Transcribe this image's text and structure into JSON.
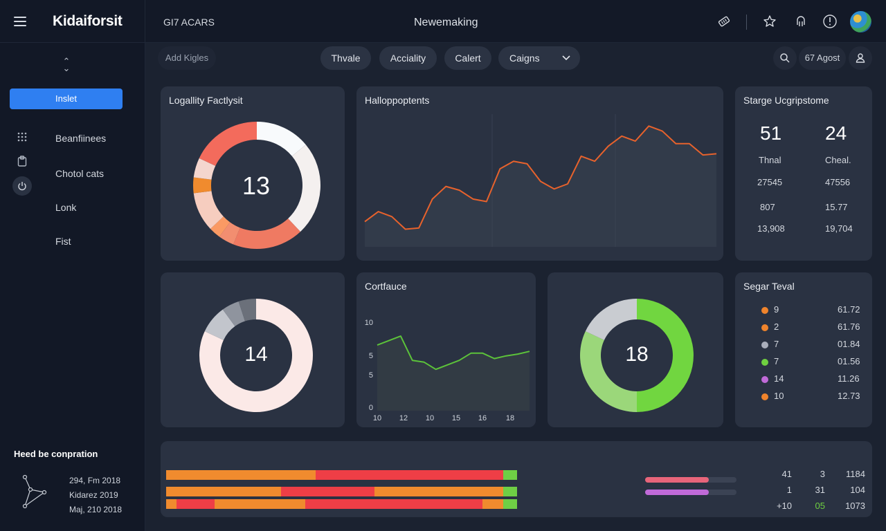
{
  "app": {
    "logo": "Kidaiforsit",
    "title_left": "GI7 ACARS",
    "title_center": "Newemaking"
  },
  "sidebar": {
    "primary_button": "Inslet",
    "items": [
      {
        "label": "Beanfiinees",
        "icon": "grid-icon"
      },
      {
        "label": "Chotol cats",
        "icon": "clipboard-icon"
      },
      {
        "label": "Lonk",
        "icon": "power-icon"
      },
      {
        "label": "Fist",
        "icon": ""
      }
    ],
    "footer": {
      "title": "Heed be conpration",
      "lines": [
        "294, Fm 2018",
        "Kidarez 2019",
        "Maj, 210 2018"
      ]
    }
  },
  "filters": {
    "search_label": "Add Kigles",
    "pills": [
      "Thvale",
      "Acciality",
      "Calert"
    ],
    "dropdown": "Caigns",
    "date": "67 Agost"
  },
  "cards": {
    "donut1": {
      "title": "Logallity Factlysit",
      "value": "13"
    },
    "line1": {
      "title": "Halloppoptents"
    },
    "stats": {
      "title": "Starge Ucgripstome",
      "col1": {
        "big": "51",
        "label": "Thnal",
        "rows": [
          "27545",
          "807",
          "13,908"
        ]
      },
      "col2": {
        "big": "24",
        "label": "Cheal.",
        "rows": [
          "47556",
          "15.77",
          "19,704"
        ]
      }
    },
    "donut2": {
      "value": "14"
    },
    "line2": {
      "title": "Cortfauce"
    },
    "donut3": {
      "value": "18"
    },
    "legend": {
      "title": "Segar Teval",
      "rows": [
        {
          "left": "9",
          "right": "61.72",
          "color": "#f0842c"
        },
        {
          "left": "2",
          "right": "61.76",
          "color": "#f0842c"
        },
        {
          "left": "7",
          "right": "01.84",
          "color": "#a9aebb"
        },
        {
          "left": "7",
          "right": "01.56",
          "color": "#6fd040"
        },
        {
          "left": "14",
          "right": "11.26",
          "color": "#c06ad8"
        },
        {
          "left": "10",
          "right": "12.73",
          "color": "#f0842c"
        }
      ]
    },
    "bottom": {
      "table": [
        [
          "41",
          "3",
          "1184"
        ],
        [
          "1",
          "31",
          "104"
        ],
        [
          "+10",
          "05",
          "1073"
        ]
      ]
    }
  },
  "chart_data": [
    {
      "type": "pie",
      "values": [
        14,
        24,
        18,
        4,
        3,
        10,
        4,
        5,
        18
      ],
      "colors": [
        "#f8fafc",
        "#f4f0ef",
        "#ef7a62",
        "#f28e70",
        "#fa9a64",
        "#f6cdbf",
        "#f08b2e",
        "#f4d6ce",
        "#f36b5c"
      ],
      "center_label": "13"
    },
    {
      "type": "line",
      "values": [
        20,
        28,
        24,
        14,
        15,
        38,
        48,
        45,
        38,
        36,
        62,
        68,
        66,
        52,
        46,
        50,
        72,
        68,
        80,
        88,
        84,
        96,
        92,
        82,
        82,
        73,
        74
      ],
      "ylim": [
        0,
        100
      ],
      "color": "#e8622c"
    },
    {
      "type": "pie",
      "values": [
        82,
        8,
        5,
        5
      ],
      "colors": [
        "#fbe9e7",
        "#c2c5cc",
        "#8f949e",
        "#6b707a"
      ],
      "center_label": "14"
    },
    {
      "type": "line",
      "x_ticks": [
        "10",
        "12",
        "10",
        "15",
        "16",
        "18"
      ],
      "y_ticks": [
        "10",
        "5",
        "5",
        "0"
      ],
      "values": [
        7.3,
        7.8,
        8.3,
        5.6,
        5.4,
        4.6,
        5.1,
        5.6,
        6.4,
        6.4,
        5.8,
        6.1,
        6.3,
        6.6
      ],
      "ylim": [
        0,
        10
      ],
      "color": "#5cc33a"
    },
    {
      "type": "pie",
      "values": [
        50,
        32,
        18
      ],
      "colors": [
        "#71d640",
        "#9bd77a",
        "#c9ccd1"
      ],
      "center_label": "18"
    },
    {
      "type": "bar",
      "stacked": true,
      "rows": [
        [
          {
            "v": 43,
            "c": "#f08b2e"
          },
          {
            "v": 54,
            "c": "#ef3e46"
          },
          {
            "v": 4,
            "c": "#6fcf45"
          }
        ],
        [
          {
            "v": 33,
            "c": "#f08b2e"
          },
          {
            "v": 27,
            "c": "#ef3e46"
          },
          {
            "v": 37,
            "c": "#f08b2e"
          },
          {
            "v": 4,
            "c": "#6fcf45"
          }
        ],
        [
          {
            "v": 3,
            "c": "#f08b2e"
          },
          {
            "v": 11,
            "c": "#ef3e46"
          },
          {
            "v": 26,
            "c": "#f08b2e"
          },
          {
            "v": 51,
            "c": "#ef3e46"
          },
          {
            "v": 6,
            "c": "#f08b2e"
          },
          {
            "v": 4,
            "c": "#6fcf45"
          }
        ]
      ],
      "mini_bars": [
        {
          "value": 0.7,
          "color": "#e8657a"
        },
        {
          "value": 0.7,
          "color": "#c06ad8"
        }
      ]
    }
  ]
}
